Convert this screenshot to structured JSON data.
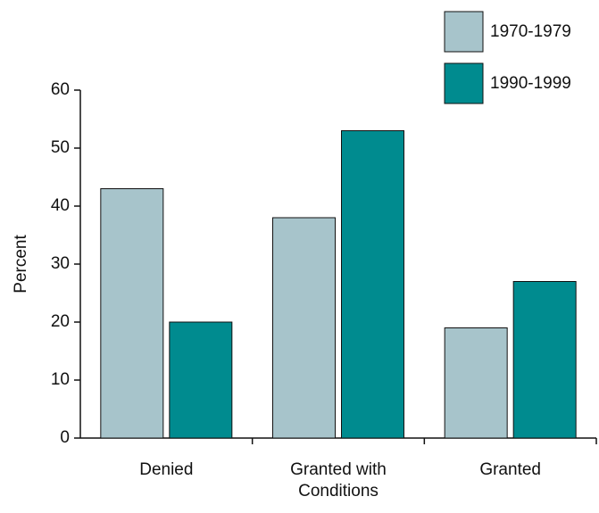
{
  "chart_data": {
    "type": "bar",
    "categories": [
      "Denied",
      "Granted with Conditions",
      "Granted"
    ],
    "series": [
      {
        "name": "1970-1979",
        "color": "#a7c4cb",
        "values": [
          43,
          38,
          19
        ]
      },
      {
        "name": "1990-1999",
        "color": "#008b8f",
        "values": [
          20,
          53,
          27
        ]
      }
    ],
    "y_label": "Percent",
    "ylim": [
      0,
      60
    ],
    "yticks": [
      0,
      10,
      20,
      30,
      40,
      50,
      60
    ],
    "legend": "top-right",
    "grid": false
  }
}
